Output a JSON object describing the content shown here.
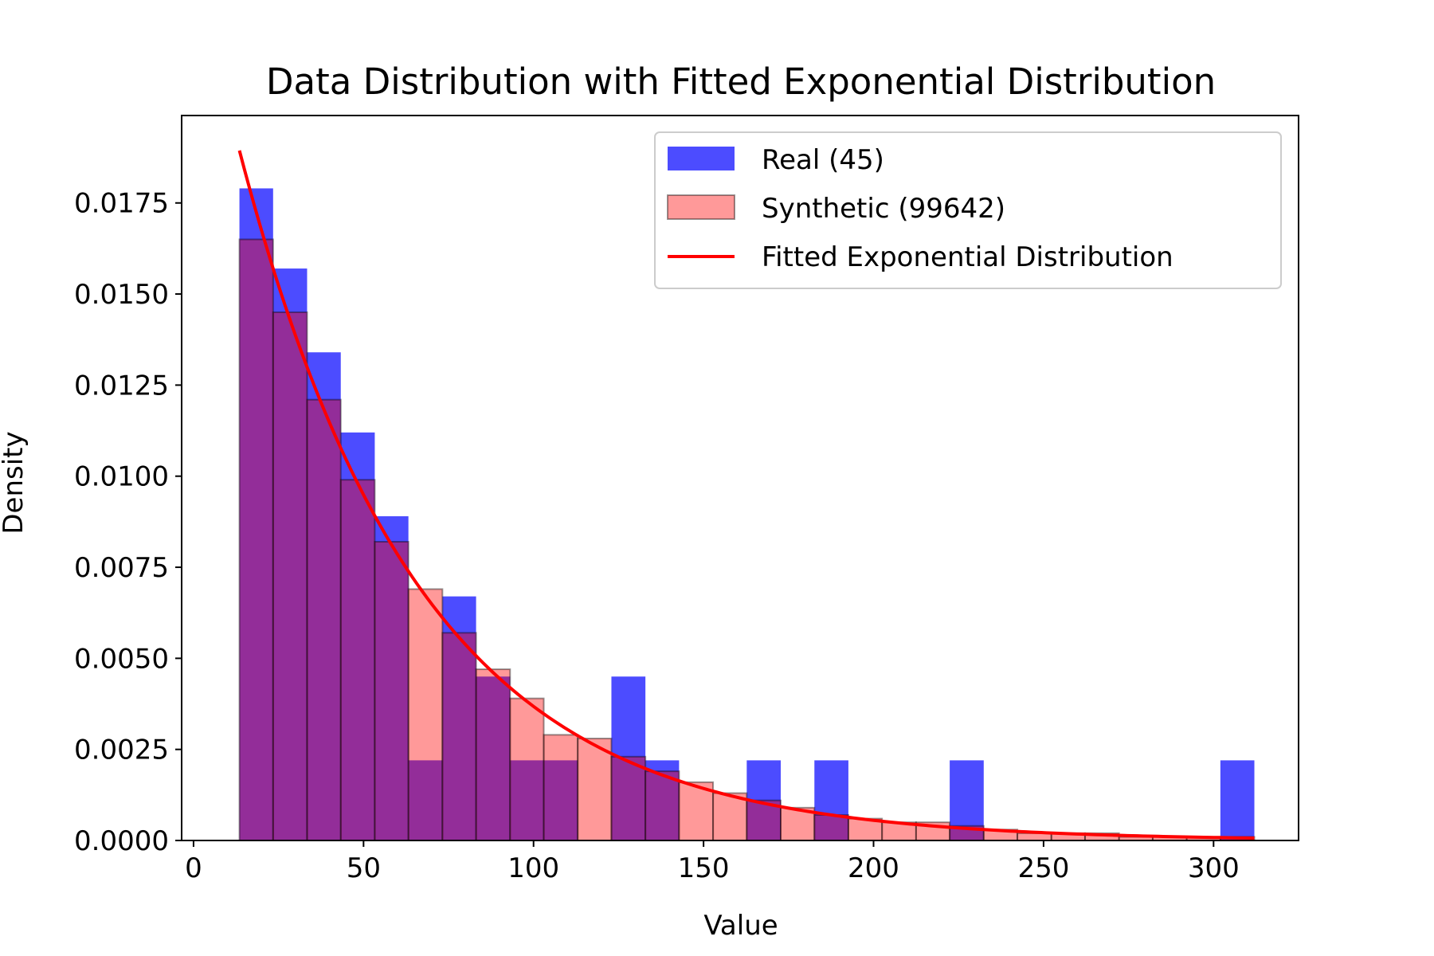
{
  "chart_data": {
    "type": "bar",
    "title": "Data Distribution with Fitted Exponential Distribution",
    "xlabel": "Value",
    "ylabel": "Density",
    "xlim": [
      -3.5,
      325
    ],
    "ylim": [
      0,
      0.0199
    ],
    "xticks": [
      0,
      50,
      100,
      150,
      200,
      250,
      300
    ],
    "xtick_labels": [
      "0",
      "50",
      "100",
      "150",
      "200",
      "250",
      "300"
    ],
    "yticks": [
      0,
      0.0025,
      0.005,
      0.0075,
      0.01,
      0.0125,
      0.015,
      0.0175
    ],
    "ytick_labels": [
      "0.0000",
      "0.0025",
      "0.0050",
      "0.0075",
      "0.0100",
      "0.0125",
      "0.0150",
      "0.0175"
    ],
    "grid": false,
    "legend_position": "top-right",
    "bin_edges": [
      13.5,
      23.4,
      33.4,
      43.3,
      53.3,
      63.2,
      73.2,
      83.1,
      93.1,
      103.0,
      113.0,
      122.9,
      132.9,
      142.8,
      152.8,
      162.7,
      172.7,
      182.6,
      192.6,
      202.5,
      212.5,
      222.4,
      232.4,
      242.3,
      252.3,
      262.2,
      272.2,
      282.1,
      292.1,
      302.0,
      312.0
    ],
    "series": [
      {
        "name": "Real (45)",
        "kind": "hist",
        "color": "#0000ff",
        "opacity": 0.7,
        "values": [
          0.0179,
          0.0157,
          0.0134,
          0.0112,
          0.0089,
          0.0022,
          0.0067,
          0.0045,
          0.0022,
          0.0022,
          0,
          0.0045,
          0.0022,
          0,
          0,
          0.0022,
          0,
          0.0022,
          0,
          0,
          0,
          0.0022,
          0,
          0,
          0,
          0,
          0,
          0,
          0,
          0.0022
        ]
      },
      {
        "name": "Synthetic (99642)",
        "kind": "hist",
        "color": "#ff0000",
        "opacity": 0.4,
        "edgecolor": "#000000",
        "values": [
          0.0165,
          0.0145,
          0.0121,
          0.0099,
          0.0082,
          0.0069,
          0.0057,
          0.0047,
          0.0039,
          0.0029,
          0.0028,
          0.0023,
          0.0019,
          0.0016,
          0.0013,
          0.0011,
          0.0009,
          0.0007,
          0.0006,
          0.0005,
          0.0005,
          0.0004,
          0.0003,
          0.0002,
          0.0002,
          0.0002,
          0.0001,
          0.0001,
          0.0001,
          0.0001
        ]
      },
      {
        "name": "Fitted Exponential Distribution",
        "kind": "line",
        "color": "#ff0000",
        "loc": 13.5,
        "scale": 52.8,
        "x_range": [
          13.5,
          312
        ]
      }
    ]
  }
}
